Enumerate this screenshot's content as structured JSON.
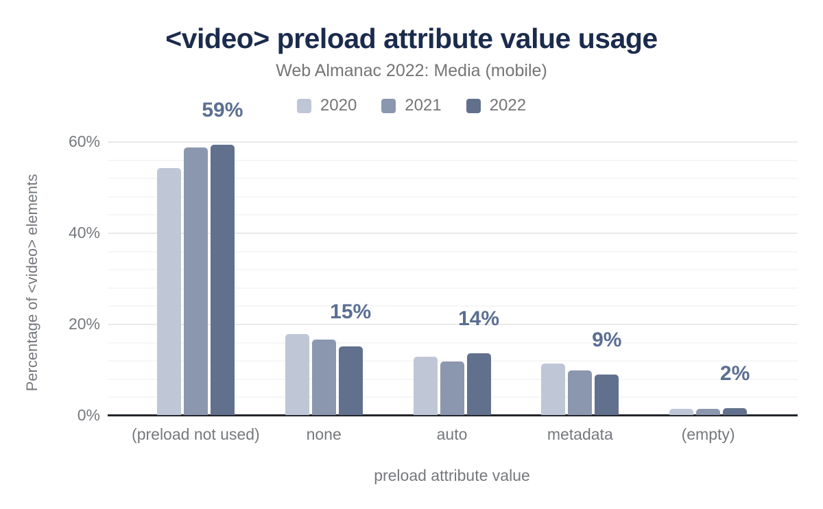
{
  "header": {
    "title": "<video> preload attribute value usage",
    "subtitle": "Web Almanac 2022: Media (mobile)"
  },
  "colors": {
    "title": "#1b2b4d",
    "subtitle": "#757575",
    "axis_text": "#75787d",
    "data_label": "#5a6e91",
    "axis_line": "#22252a",
    "gridline_minor": "#f6f6f6",
    "gridline_major": "#e9e9e9",
    "series_2020": "#bfc6d6",
    "series_2021": "#8b97af",
    "series_2022": "#61708d"
  },
  "chart_data": {
    "type": "bar",
    "title": "<video> preload attribute value usage",
    "subtitle": "Web Almanac 2022: Media (mobile)",
    "categories": [
      "(preload not used)",
      "none",
      "auto",
      "metadata",
      "(empty)"
    ],
    "series": [
      {
        "name": "2020",
        "color": "#bfc6d6",
        "values": [
          54.2,
          17.8,
          12.8,
          11.3,
          1.3
        ]
      },
      {
        "name": "2021",
        "color": "#8b97af",
        "values": [
          58.7,
          16.5,
          11.7,
          9.7,
          1.4
        ]
      },
      {
        "name": "2022",
        "color": "#61708d",
        "values": [
          59.2,
          15.0,
          13.5,
          8.8,
          1.5
        ]
      }
    ],
    "data_labels": [
      "59%",
      "15%",
      "14%",
      "9%",
      "2%"
    ],
    "xlabel": "preload attribute value",
    "ylabel": "Percentage of <video> elements",
    "ylim": [
      0,
      60
    ],
    "yticks": [
      {
        "value": 0,
        "label": "0%"
      },
      {
        "value": 20,
        "label": "20%"
      },
      {
        "value": 40,
        "label": "40%"
      },
      {
        "value": 60,
        "label": "60%"
      }
    ],
    "grid": {
      "on": true,
      "minor_step": 4,
      "major_step": 20
    },
    "legend_position": "top-center"
  }
}
